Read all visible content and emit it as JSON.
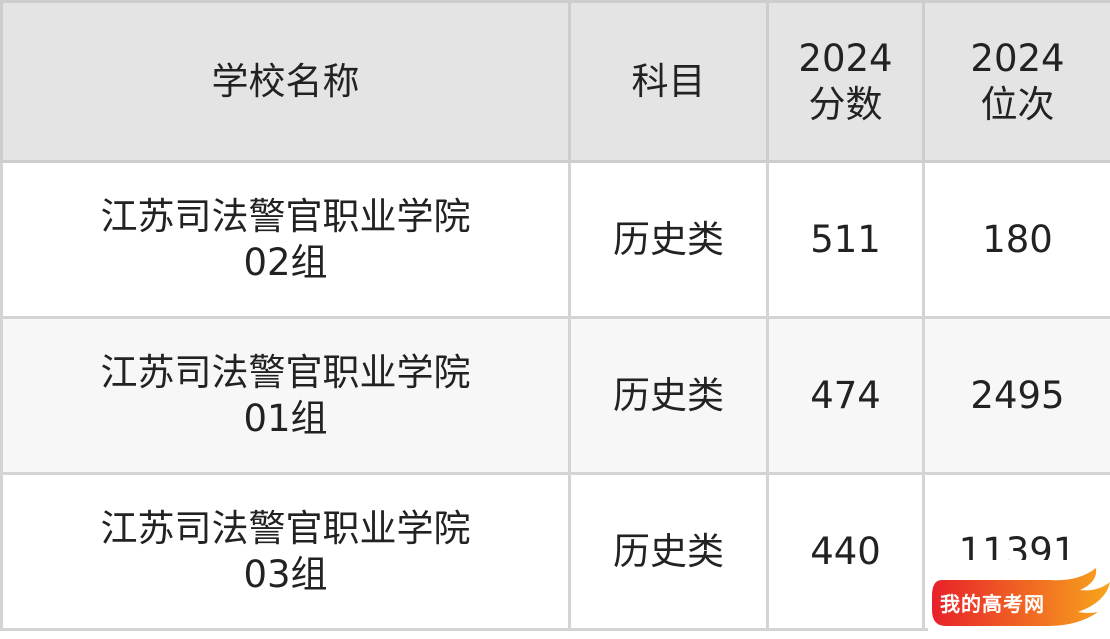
{
  "table": {
    "headers": [
      "学校名称",
      "科目",
      "2024\n分数",
      "2024\n位次"
    ],
    "header_lines": [
      [
        "学校名称"
      ],
      [
        "科目"
      ],
      [
        "2024",
        "分数"
      ],
      [
        "2024",
        "位次"
      ]
    ],
    "rows": [
      {
        "school": [
          "江苏司法警官职业学院",
          "02组"
        ],
        "subject": "历史类",
        "score": "511",
        "rank": "180"
      },
      {
        "school": [
          "江苏司法警官职业学院",
          "01组"
        ],
        "subject": "历史类",
        "score": "474",
        "rank": "2495"
      },
      {
        "school": [
          "江苏司法警官职业学院",
          "03组"
        ],
        "subject": "历史类",
        "score": "440",
        "rank": "11391"
      }
    ]
  },
  "watermark": {
    "text": "我的高考网",
    "colors": [
      "#e8212a",
      "#f7a51c"
    ]
  }
}
